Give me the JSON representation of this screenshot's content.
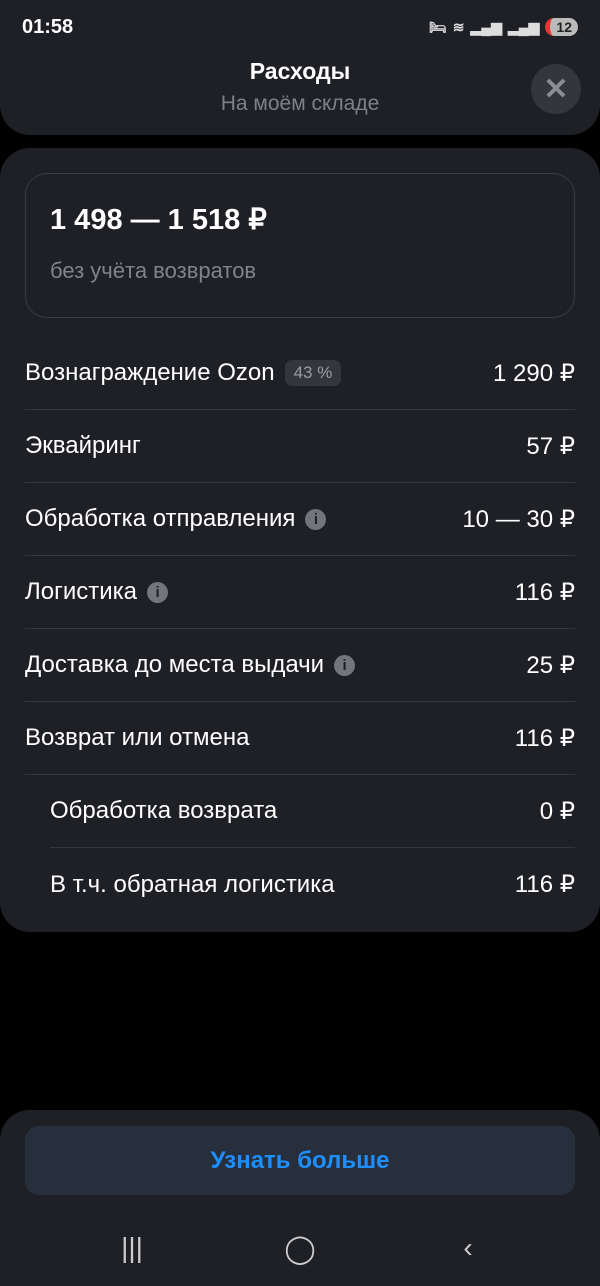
{
  "status": {
    "time": "01:58",
    "battery": "12"
  },
  "header": {
    "title": "Расходы",
    "subtitle": "На моём складе",
    "close_icon": "close-icon"
  },
  "summary": {
    "range": "1 498 — 1 518 ₽",
    "note": "без учёта возвратов"
  },
  "rows": [
    {
      "label": "Вознаграждение Ozon",
      "badge": "43 %",
      "value": "1 290 ₽"
    },
    {
      "label": "Эквайринг",
      "value": "57 ₽"
    },
    {
      "label": "Обработка отправления",
      "info": true,
      "value": "10 — 30 ₽"
    },
    {
      "label": "Логистика",
      "info": true,
      "value": "116 ₽"
    },
    {
      "label": "Доставка до места выдачи",
      "info": true,
      "value": "25 ₽"
    },
    {
      "label": "Возврат или отмена",
      "value": "116 ₽"
    },
    {
      "label": "Обработка возврата",
      "sub": true,
      "value": "0 ₽"
    },
    {
      "label": "В т.ч. обратная логистика",
      "sub": true,
      "value": "116 ₽"
    }
  ],
  "footer": {
    "button": "Узнать больше"
  },
  "colors": {
    "accent": "#1e8fff",
    "card": "#1e2026"
  }
}
